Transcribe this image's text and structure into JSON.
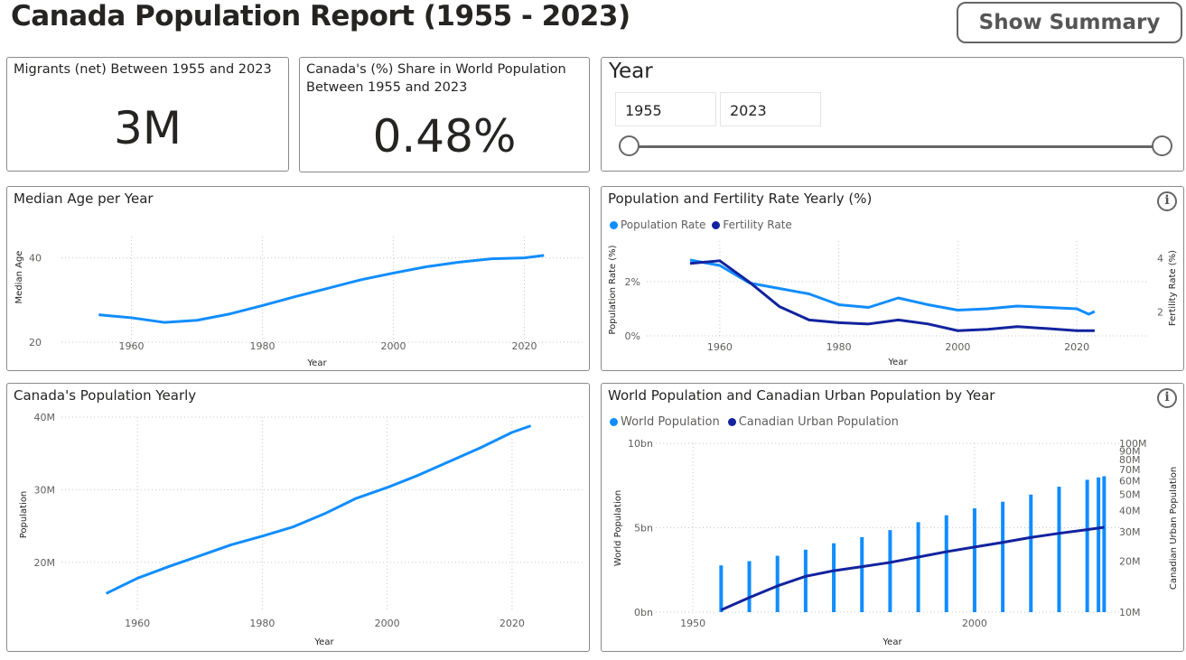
{
  "header": {
    "title": "Canada Population Report (1955 - 2023)",
    "summary_button": "Show Summary"
  },
  "kpis": {
    "migrants": {
      "label": "Migrants (net) Between 1955 and 2023",
      "value": "3M"
    },
    "share": {
      "label_line1": "Canada's (%) Share in World Population",
      "label_line2": "Between 1955 and 2023",
      "value": "0.48%"
    }
  },
  "slicer": {
    "title": "Year",
    "start": "1955",
    "end": "2023"
  },
  "colors": {
    "light_blue": "#118dff",
    "dark_blue": "#12239e",
    "grid": "#c8c8c8"
  },
  "chart_data": [
    {
      "id": "median_age",
      "type": "line",
      "title": "Median Age per Year",
      "xlabel": "Year",
      "ylabel": "Median Age",
      "x_ticks": [
        "1960",
        "1980",
        "2000",
        "2020"
      ],
      "y_ticks": [
        "20",
        "40"
      ],
      "xlim": [
        1950,
        2030
      ],
      "ylim": [
        17,
        44
      ],
      "series": [
        {
          "name": "Median Age",
          "x": [
            1955,
            1960,
            1965,
            1970,
            1975,
            1980,
            1985,
            1990,
            1995,
            2000,
            2005,
            2010,
            2015,
            2020,
            2023
          ],
          "values": [
            26.5,
            25.8,
            24.7,
            25.2,
            26.7,
            28.7,
            30.8,
            32.8,
            34.8,
            36.4,
            37.9,
            39.0,
            39.8,
            40.0,
            40.6
          ]
        }
      ]
    },
    {
      "id": "pop_fertility",
      "type": "line",
      "title": "Population and Fertility Rate Yearly (%)",
      "xlabel": "Year",
      "ylabel": "Population Rate (%)",
      "y2label": "Fertility Rate (%)",
      "legend": [
        "Population Rate",
        "Fertility Rate"
      ],
      "x_ticks": [
        "1960",
        "1980",
        "2000",
        "2020"
      ],
      "y_ticks": [
        "0%",
        "2%"
      ],
      "y2_ticks": [
        "2",
        "4"
      ],
      "xlim": [
        1950,
        2030
      ],
      "ylim": [
        0,
        3.5
      ],
      "y2lim": [
        0,
        4.8
      ],
      "series": [
        {
          "name": "Population Rate",
          "x": [
            1955,
            1960,
            1965,
            1970,
            1975,
            1980,
            1985,
            1990,
            1995,
            2000,
            2005,
            2010,
            2015,
            2020,
            2022,
            2023
          ],
          "values": [
            2.8,
            2.6,
            1.95,
            1.75,
            1.55,
            1.15,
            1.05,
            1.4,
            1.15,
            0.95,
            1.0,
            1.1,
            1.05,
            1.0,
            0.8,
            0.9
          ]
        },
        {
          "name": "Fertility Rate",
          "x": [
            1955,
            1960,
            1965,
            1970,
            1975,
            1980,
            1985,
            1990,
            1995,
            2000,
            2005,
            2010,
            2015,
            2020,
            2023
          ],
          "values": [
            3.8,
            3.9,
            3.1,
            2.2,
            1.7,
            1.6,
            1.55,
            1.7,
            1.55,
            1.3,
            1.35,
            1.45,
            1.38,
            1.3,
            1.3
          ]
        }
      ]
    },
    {
      "id": "canada_pop",
      "type": "line",
      "title": "Canada's Population Yearly",
      "xlabel": "Year",
      "ylabel": "Population",
      "x_ticks": [
        "1960",
        "1980",
        "2000",
        "2020"
      ],
      "y_ticks": [
        "20M",
        "30M",
        "40M"
      ],
      "xlim": [
        1950,
        2030
      ],
      "ylim": [
        14,
        40
      ],
      "series": [
        {
          "name": "Population",
          "x": [
            1955,
            1960,
            1965,
            1970,
            1975,
            1980,
            1985,
            1990,
            1995,
            2000,
            2005,
            2010,
            2015,
            2020,
            2023
          ],
          "values": [
            15.7,
            17.8,
            19.4,
            20.9,
            22.4,
            23.6,
            24.9,
            26.7,
            28.8,
            30.3,
            32.0,
            33.9,
            35.8,
            37.9,
            38.8
          ]
        }
      ]
    },
    {
      "id": "world_urban",
      "type": "bar+line",
      "title": "World Population and Canadian Urban Population by Year",
      "xlabel": "Year",
      "ylabel": "World Population",
      "y2label": "Canadian Urban Population",
      "legend": [
        "World Population",
        "Canadian Urban Population"
      ],
      "x_ticks": [
        "1950",
        "2000"
      ],
      "y_ticks": [
        "0bn",
        "5bn",
        "10bn"
      ],
      "y2_ticks": [
        "10M",
        "20M",
        "30M",
        "40M",
        "50M",
        "60M",
        "70M",
        "80M",
        "90M",
        "100M"
      ],
      "xlim": [
        1945,
        2030
      ],
      "ylim": [
        0,
        10
      ],
      "y2lim_log": [
        10,
        100
      ],
      "series": [
        {
          "name": "World Population",
          "x": [
            1955,
            1960,
            1965,
            1970,
            1975,
            1980,
            1985,
            1990,
            1995,
            2000,
            2005,
            2010,
            2015,
            2020,
            2022,
            2023
          ],
          "values": [
            2.77,
            3.02,
            3.34,
            3.7,
            4.08,
            4.44,
            4.86,
            5.33,
            5.74,
            6.15,
            6.54,
            6.96,
            7.43,
            7.84,
            7.98,
            8.05
          ]
        },
        {
          "name": "Canadian Urban Population",
          "x": [
            1955,
            1960,
            1965,
            1970,
            1975,
            1980,
            1985,
            1990,
            1995,
            2000,
            2005,
            2010,
            2015,
            2020,
            2023
          ],
          "values": [
            10.3,
            12.2,
            14.3,
            16.3,
            17.6,
            18.6,
            19.7,
            21.2,
            22.8,
            24.3,
            25.9,
            27.7,
            29.3,
            30.8,
            31.8
          ]
        }
      ]
    }
  ]
}
